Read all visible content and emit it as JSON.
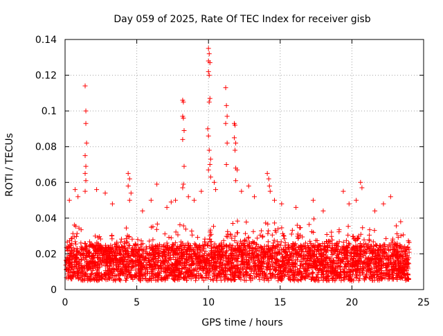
{
  "chart_data": {
    "type": "scatter",
    "title": "Day 059 of 2025, Rate Of TEC Index for receiver gisb",
    "xlabel": "GPS time / hours",
    "ylabel": "ROTI / TECUs",
    "xlim": [
      0,
      25
    ],
    "ylim": [
      0,
      0.14
    ],
    "xticks": [
      0,
      5,
      10,
      15,
      20,
      25
    ],
    "yticks": [
      0,
      0.02,
      0.04,
      0.06,
      0.08,
      0.1,
      0.12,
      0.14
    ],
    "xtick_labels": [
      "0",
      "5",
      "10",
      "15",
      "20",
      "25"
    ],
    "ytick_labels": [
      "0",
      "0.02",
      "0.04",
      "0.06",
      "0.08",
      "0.1",
      "0.12",
      "0.14"
    ],
    "grid": true,
    "grid_style": "dotted",
    "marker": "plus",
    "color": "#ff0000",
    "x_range": [
      0,
      24
    ],
    "baseline_band": [
      0.005,
      0.025
    ],
    "typical_max": 0.04,
    "peaks": [
      {
        "x": 1.4,
        "y": 0.114
      },
      {
        "x": 1.45,
        "y": 0.1
      },
      {
        "x": 1.45,
        "y": 0.093
      },
      {
        "x": 1.5,
        "y": 0.082
      },
      {
        "x": 1.4,
        "y": 0.075
      },
      {
        "x": 1.45,
        "y": 0.069
      },
      {
        "x": 1.4,
        "y": 0.065
      },
      {
        "x": 1.45,
        "y": 0.061
      },
      {
        "x": 1.4,
        "y": 0.055
      },
      {
        "x": 0.7,
        "y": 0.056
      },
      {
        "x": 0.9,
        "y": 0.052
      },
      {
        "x": 0.3,
        "y": 0.05
      },
      {
        "x": 2.2,
        "y": 0.056
      },
      {
        "x": 2.8,
        "y": 0.054
      },
      {
        "x": 3.3,
        "y": 0.048
      },
      {
        "x": 4.4,
        "y": 0.065
      },
      {
        "x": 4.5,
        "y": 0.062
      },
      {
        "x": 4.4,
        "y": 0.058
      },
      {
        "x": 4.6,
        "y": 0.054
      },
      {
        "x": 4.5,
        "y": 0.05
      },
      {
        "x": 5.4,
        "y": 0.044
      },
      {
        "x": 6.0,
        "y": 0.05
      },
      {
        "x": 6.4,
        "y": 0.059
      },
      {
        "x": 7.1,
        "y": 0.046
      },
      {
        "x": 7.4,
        "y": 0.049
      },
      {
        "x": 7.7,
        "y": 0.05
      },
      {
        "x": 8.2,
        "y": 0.106
      },
      {
        "x": 8.25,
        "y": 0.105
      },
      {
        "x": 8.2,
        "y": 0.097
      },
      {
        "x": 8.25,
        "y": 0.096
      },
      {
        "x": 8.3,
        "y": 0.089
      },
      {
        "x": 8.2,
        "y": 0.084
      },
      {
        "x": 8.3,
        "y": 0.069
      },
      {
        "x": 8.25,
        "y": 0.059
      },
      {
        "x": 8.2,
        "y": 0.057
      },
      {
        "x": 8.6,
        "y": 0.052
      },
      {
        "x": 9.0,
        "y": 0.05
      },
      {
        "x": 9.5,
        "y": 0.055
      },
      {
        "x": 10.0,
        "y": 0.135
      },
      {
        "x": 10.05,
        "y": 0.132
      },
      {
        "x": 10.0,
        "y": 0.128
      },
      {
        "x": 10.1,
        "y": 0.127
      },
      {
        "x": 10.0,
        "y": 0.122
      },
      {
        "x": 10.05,
        "y": 0.12
      },
      {
        "x": 10.1,
        "y": 0.107
      },
      {
        "x": 10.05,
        "y": 0.105
      },
      {
        "x": 9.95,
        "y": 0.09
      },
      {
        "x": 10.0,
        "y": 0.086
      },
      {
        "x": 10.05,
        "y": 0.078
      },
      {
        "x": 10.15,
        "y": 0.073
      },
      {
        "x": 10.1,
        "y": 0.07
      },
      {
        "x": 10.0,
        "y": 0.067
      },
      {
        "x": 10.15,
        "y": 0.063
      },
      {
        "x": 10.4,
        "y": 0.06
      },
      {
        "x": 10.5,
        "y": 0.056
      },
      {
        "x": 11.2,
        "y": 0.113
      },
      {
        "x": 11.25,
        "y": 0.103
      },
      {
        "x": 11.3,
        "y": 0.097
      },
      {
        "x": 11.2,
        "y": 0.093
      },
      {
        "x": 11.3,
        "y": 0.082
      },
      {
        "x": 11.25,
        "y": 0.07
      },
      {
        "x": 11.8,
        "y": 0.093
      },
      {
        "x": 11.85,
        "y": 0.092
      },
      {
        "x": 11.8,
        "y": 0.085
      },
      {
        "x": 11.9,
        "y": 0.082
      },
      {
        "x": 11.85,
        "y": 0.078
      },
      {
        "x": 11.9,
        "y": 0.068
      },
      {
        "x": 12.0,
        "y": 0.067
      },
      {
        "x": 11.9,
        "y": 0.061
      },
      {
        "x": 12.3,
        "y": 0.055
      },
      {
        "x": 12.8,
        "y": 0.058
      },
      {
        "x": 13.2,
        "y": 0.052
      },
      {
        "x": 14.1,
        "y": 0.065
      },
      {
        "x": 14.2,
        "y": 0.062
      },
      {
        "x": 14.25,
        "y": 0.058
      },
      {
        "x": 14.3,
        "y": 0.055
      },
      {
        "x": 14.6,
        "y": 0.05
      },
      {
        "x": 15.1,
        "y": 0.048
      },
      {
        "x": 16.1,
        "y": 0.046
      },
      {
        "x": 17.3,
        "y": 0.05
      },
      {
        "x": 18.0,
        "y": 0.044
      },
      {
        "x": 19.4,
        "y": 0.055
      },
      {
        "x": 19.8,
        "y": 0.048
      },
      {
        "x": 20.3,
        "y": 0.05
      },
      {
        "x": 20.6,
        "y": 0.06
      },
      {
        "x": 20.7,
        "y": 0.057
      },
      {
        "x": 21.6,
        "y": 0.044
      },
      {
        "x": 22.2,
        "y": 0.048
      },
      {
        "x": 22.7,
        "y": 0.052
      },
      {
        "x": 23.4,
        "y": 0.038
      }
    ]
  }
}
